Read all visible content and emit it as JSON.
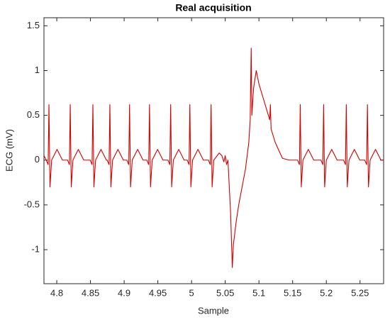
{
  "chart_data": {
    "type": "line",
    "title": "Real acquisition",
    "xlabel": "Sample",
    "ylabel": "ECG (mV)",
    "xlim": [
      4.781,
      5.285
    ],
    "xticks": [
      4.8,
      4.85,
      4.9,
      4.95,
      5,
      5.05,
      5.1,
      5.15,
      5.2,
      5.25
    ],
    "ylim": [
      -1.38,
      1.59
    ],
    "yticks": [
      -1,
      -0.5,
      0,
      0.5,
      1,
      1.5
    ],
    "series": [
      {
        "color": "#d40000",
        "x": [
          4.781,
          4.7844,
          4.7872,
          4.7884,
          4.7899,
          4.7924,
          4.8004,
          4.8084,
          4.816,
          4.8188,
          4.82,
          4.8215,
          4.824,
          4.832,
          4.84,
          4.8496,
          4.8524,
          4.8536,
          4.8551,
          4.8576,
          4.8656,
          4.8736,
          4.8748,
          4.8776,
          4.8788,
          4.8803,
          4.8828,
          4.8908,
          4.8988,
          4.904,
          4.9068,
          4.908,
          4.9095,
          4.912,
          4.92,
          4.928,
          4.9336,
          4.9364,
          4.9376,
          4.9391,
          4.9416,
          4.9496,
          4.9576,
          4.965,
          4.9678,
          4.969,
          4.9705,
          4.973,
          4.981,
          4.989,
          4.9935,
          4.9963,
          4.9975,
          4.999,
          5.0015,
          5.0095,
          5.0175,
          5.025,
          5.0278,
          5.029,
          5.0305,
          5.033,
          5.041,
          5.045,
          5.048,
          5.05,
          5.052,
          5.054,
          5.056,
          5.058,
          5.0605,
          5.062,
          5.066,
          5.07,
          5.075,
          5.08,
          5.085,
          5.087,
          5.0885,
          5.0895,
          5.092,
          5.096,
          5.1,
          5.106,
          5.112,
          5.116,
          5.117,
          5.118,
          5.124,
          5.13,
          5.135,
          5.145,
          5.1573,
          5.1601,
          5.1613,
          5.1628,
          5.1653,
          5.1733,
          5.1813,
          5.192,
          5.1948,
          5.196,
          5.1975,
          5.2,
          5.208,
          5.216,
          5.2256,
          5.2284,
          5.2296,
          5.2311,
          5.2336,
          5.2416,
          5.2496,
          5.257,
          5.2598,
          5.261,
          5.2625,
          5.265,
          5.273,
          5.281,
          5.285
        ],
        "values": [
          0.05,
          0,
          -0.05,
          0.62,
          -0.3,
          0,
          0.12,
          0,
          0,
          -0.05,
          0.62,
          -0.3,
          0,
          0.12,
          0,
          0,
          -0.05,
          0.62,
          -0.3,
          0,
          0.12,
          0,
          0,
          -0.05,
          0.62,
          -0.3,
          0,
          0.12,
          0,
          0,
          -0.05,
          0.62,
          -0.3,
          0,
          0.12,
          0,
          0,
          -0.05,
          0.62,
          -0.3,
          0,
          0.12,
          0,
          0,
          -0.05,
          0.62,
          -0.3,
          0,
          0.12,
          0,
          0,
          -0.05,
          0.62,
          -0.3,
          0,
          0.12,
          0,
          0,
          -0.05,
          0.62,
          -0.3,
          0,
          0.08,
          0.05,
          -0.02,
          0.05,
          -0.05,
          0,
          -0.3,
          -0.6,
          -1.2,
          -0.95,
          -0.7,
          -0.5,
          -0.3,
          -0.1,
          0.2,
          0.45,
          1.25,
          0.5,
          0.8,
          1.0,
          0.85,
          0.7,
          0.55,
          0.45,
          0.62,
          0.35,
          0.2,
          0.1,
          0.02,
          0,
          0,
          -0.05,
          0.62,
          -0.3,
          0,
          0.12,
          0,
          0,
          -0.05,
          0.62,
          -0.3,
          0,
          0.12,
          0,
          0,
          -0.05,
          0.62,
          -0.3,
          0,
          0.12,
          0,
          0,
          -0.05,
          0.62,
          -0.3,
          0,
          0.12,
          0,
          0
        ]
      }
    ]
  }
}
